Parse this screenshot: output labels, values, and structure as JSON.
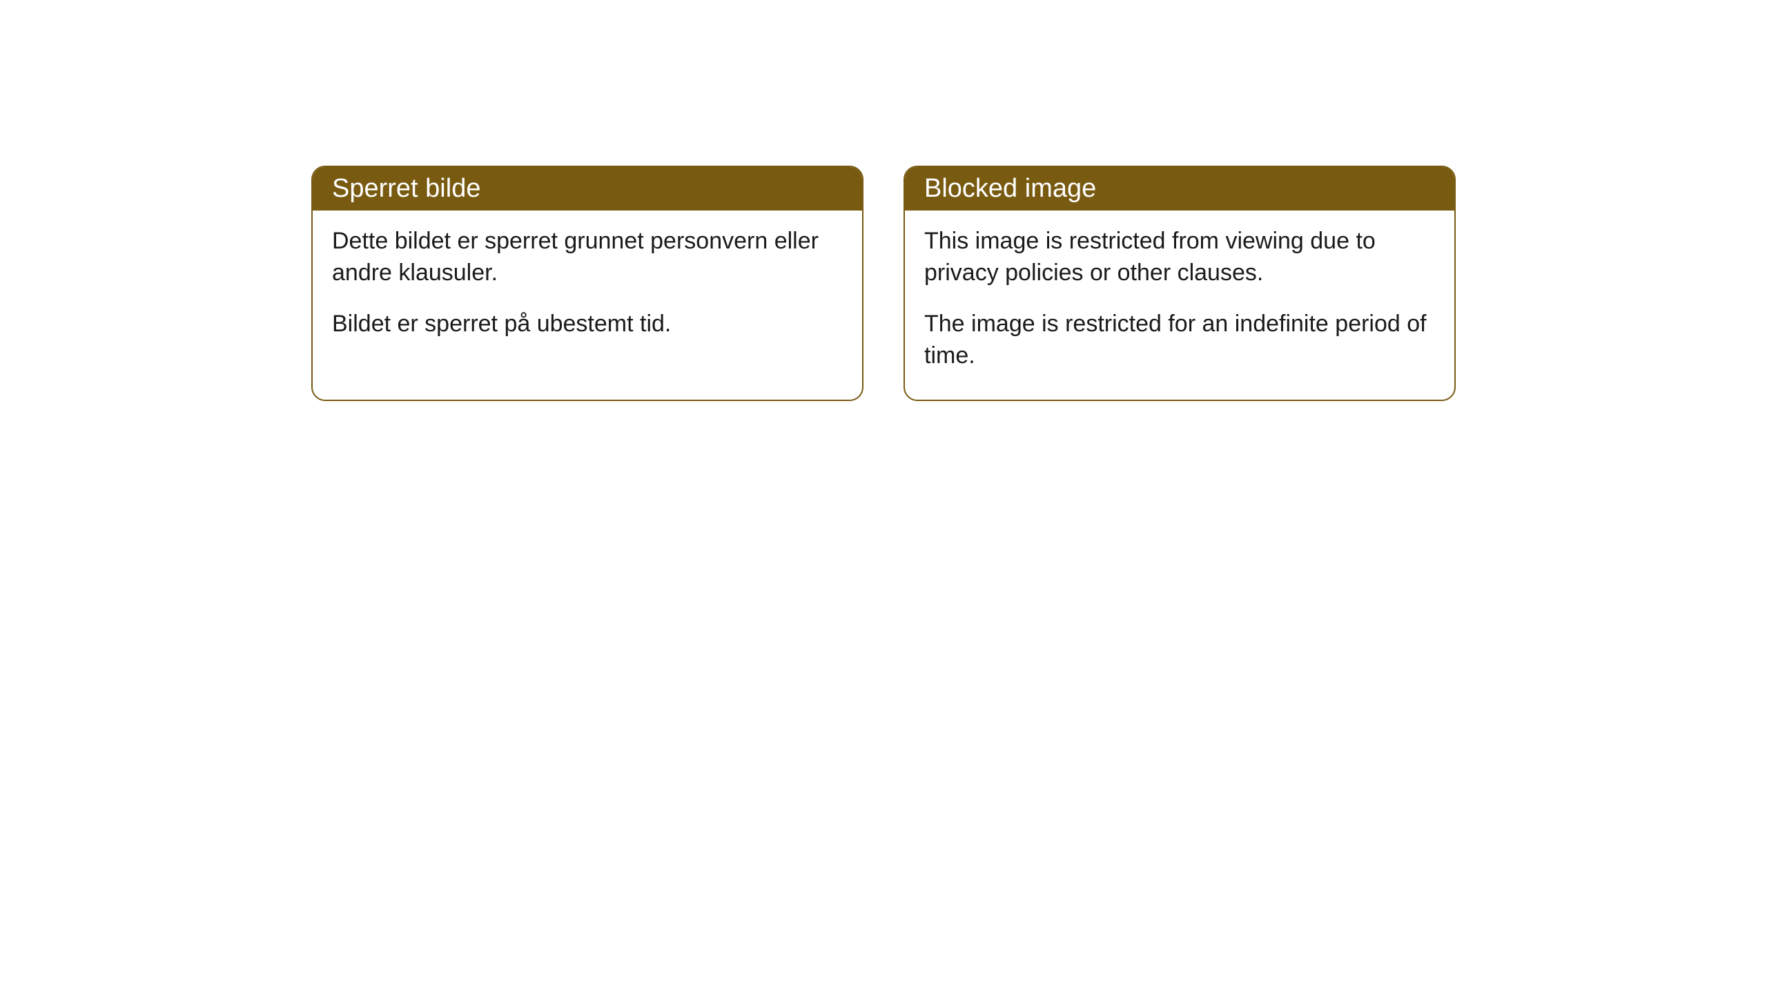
{
  "cards": [
    {
      "title": "Sperret bilde",
      "paragraph1": "Dette bildet er sperret grunnet personvern eller andre klausuler.",
      "paragraph2": "Bildet er sperret på ubestemt tid."
    },
    {
      "title": "Blocked image",
      "paragraph1": "This image is restricted from viewing due to privacy policies or other clauses.",
      "paragraph2": "The image is restricted for an indefinite period of time."
    }
  ],
  "styling": {
    "header_bg_color": "#785a10",
    "header_text_color": "#ffffff",
    "border_color": "#785a10",
    "body_text_color": "#1a1a1a",
    "card_bg_color": "#ffffff",
    "page_bg_color": "#ffffff",
    "border_radius": 20,
    "header_fontsize": 38,
    "body_fontsize": 34
  }
}
